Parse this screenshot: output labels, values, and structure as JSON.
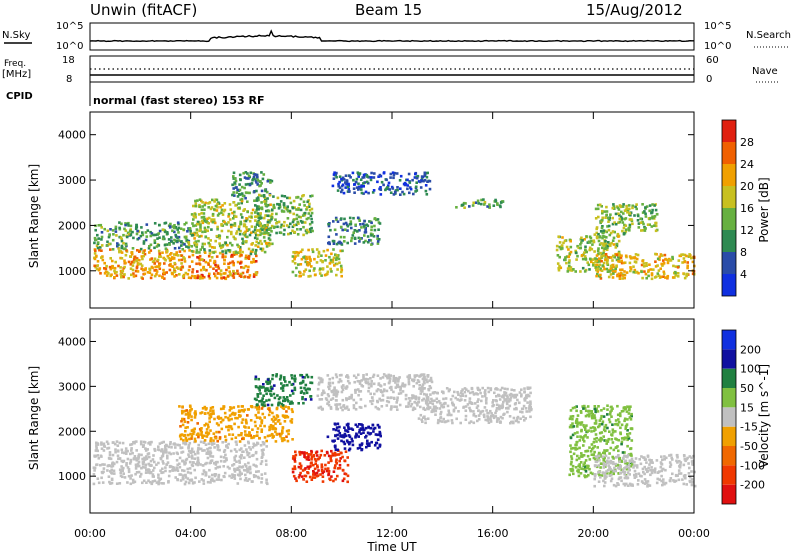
{
  "header": {
    "station": "Unwin (fitACF)",
    "beam": "Beam 15",
    "date": "15/Aug/2012"
  },
  "summary_panels": {
    "nsky_label": "N.Sky",
    "nsky_ticks": [
      "10^5",
      "10^0"
    ],
    "nsearch_label": "N.Search",
    "nsearch_ticks": [
      "10^5",
      "10^0"
    ],
    "freq_label": "Freq.",
    "freq_unit": "[MHz]",
    "freq_ticks": [
      "18",
      "8"
    ],
    "nave_label": "Nave",
    "nave_ticks": [
      "60",
      "0"
    ],
    "cpid_label": "CPID",
    "cpid_text": "normal (fast stereo) 153 RF"
  },
  "colors": {
    "power": [
      "#1030e0",
      "#2a4ca8",
      "#2e8a52",
      "#66b040",
      "#c8c020",
      "#f0a000",
      "#f06000",
      "#e02010"
    ],
    "velocity": [
      "#e01010",
      "#f03800",
      "#f06800",
      "#f0a000",
      "#c0c0c0",
      "#80c040",
      "#208040",
      "#1010a0",
      "#1030e0"
    ]
  },
  "chart_data": [
    {
      "type": "heatmap",
      "name_of_quantity": "Power [dB]",
      "ylabel": "Slant Range [km]",
      "xlabel": "",
      "x_ticks": [
        "00:00",
        "04:00",
        "08:00",
        "12:00",
        "16:00",
        "20:00",
        "00:00"
      ],
      "y_ticks": [
        "1000",
        "2000",
        "3000",
        "4000"
      ],
      "xlim_hours": [
        0,
        24
      ],
      "ylim_km": [
        180,
        4500
      ],
      "colorbar_ticks": [
        "4",
        "8",
        "12",
        "16",
        "20",
        "24",
        "28"
      ],
      "colorbar_range": [
        0,
        32
      ],
      "regions": [
        {
          "t0": 0.1,
          "t1": 4.0,
          "r0": 850,
          "r1": 1500,
          "level": 22
        },
        {
          "t0": 0.1,
          "t1": 4.0,
          "r0": 1500,
          "r1": 2100,
          "level": 12
        },
        {
          "t0": 4.0,
          "t1": 6.6,
          "r0": 850,
          "r1": 1400,
          "level": 24
        },
        {
          "t0": 4.0,
          "t1": 7.2,
          "r0": 1400,
          "r1": 2600,
          "level": 16
        },
        {
          "t0": 5.6,
          "t1": 7.2,
          "r0": 2600,
          "r1": 3200,
          "level": 10
        },
        {
          "t0": 6.5,
          "t1": 8.8,
          "r0": 1800,
          "r1": 2700,
          "level": 14
        },
        {
          "t0": 8.0,
          "t1": 10.0,
          "r0": 900,
          "r1": 1500,
          "level": 18
        },
        {
          "t0": 9.4,
          "t1": 11.5,
          "r0": 1600,
          "r1": 2200,
          "level": 10
        },
        {
          "t0": 9.6,
          "t1": 13.5,
          "r0": 2700,
          "r1": 3200,
          "level": 6
        },
        {
          "t0": 14.5,
          "t1": 16.4,
          "r0": 2400,
          "r1": 2600,
          "level": 12
        },
        {
          "t0": 18.5,
          "t1": 21.0,
          "r0": 1000,
          "r1": 1800,
          "level": 16
        },
        {
          "t0": 20.0,
          "t1": 24.0,
          "r0": 850,
          "r1": 1400,
          "level": 20
        },
        {
          "t0": 20.0,
          "t1": 22.5,
          "r0": 1800,
          "r1": 2500,
          "level": 14
        }
      ]
    },
    {
      "type": "heatmap",
      "name_of_quantity": "Velocity [m s^-1]",
      "ylabel": "Slant Range [km]",
      "xlabel": "Time UT",
      "x_ticks": [
        "00:00",
        "04:00",
        "08:00",
        "12:00",
        "16:00",
        "20:00",
        "00:00"
      ],
      "y_ticks": [
        "1000",
        "2000",
        "3000",
        "4000"
      ],
      "xlim_hours": [
        0,
        24
      ],
      "ylim_km": [
        180,
        4500
      ],
      "colorbar_ticks": [
        "-200",
        "-100",
        "-50",
        "-15",
        "15",
        "50",
        "100",
        "200"
      ],
      "regions": [
        {
          "t0": 0.1,
          "t1": 7.0,
          "r0": 850,
          "r1": 1800,
          "velocity": 0
        },
        {
          "t0": 3.5,
          "t1": 8.0,
          "r0": 1800,
          "r1": 2600,
          "velocity": -40
        },
        {
          "t0": 6.5,
          "t1": 8.8,
          "r0": 2600,
          "r1": 3300,
          "velocity": 80
        },
        {
          "t0": 8.0,
          "t1": 10.2,
          "r0": 900,
          "r1": 1600,
          "velocity": -180
        },
        {
          "t0": 9.4,
          "t1": 11.5,
          "r0": 1600,
          "r1": 2200,
          "velocity": 150
        },
        {
          "t0": 9.0,
          "t1": 13.6,
          "r0": 2500,
          "r1": 3300,
          "velocity": 0
        },
        {
          "t0": 13.0,
          "t1": 17.5,
          "r0": 2200,
          "r1": 3000,
          "velocity": 0
        },
        {
          "t0": 19.0,
          "t1": 21.5,
          "r0": 1000,
          "r1": 2600,
          "velocity": 40
        },
        {
          "t0": 20.0,
          "t1": 24.0,
          "r0": 800,
          "r1": 1500,
          "velocity": 0
        }
      ]
    }
  ]
}
